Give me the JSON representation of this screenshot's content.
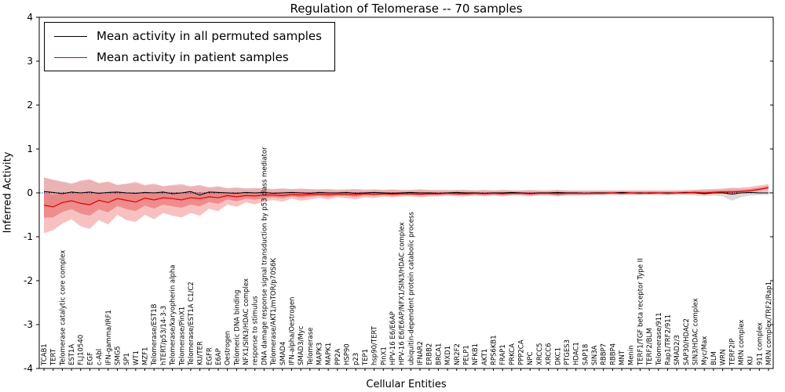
{
  "chart_data": {
    "type": "line",
    "title": "Regulation of Telomerase -- 70 samples",
    "xlabel": "Cellular Entities",
    "ylabel": "Inferred Activity",
    "ylim": [
      -4,
      4
    ],
    "yticks": [
      4,
      3,
      2,
      1,
      0,
      -1,
      -2,
      -3,
      -4
    ],
    "grid": false,
    "legend_position": "upper left",
    "legend": [
      {
        "label": "Mean activity in all permuted samples",
        "color": "#000000"
      },
      {
        "label": "Mean activity in patient samples",
        "color": "#e00000"
      }
    ],
    "colors": {
      "permuted_line": "#000000",
      "patient_line": "#e00000",
      "permuted_band": "#bbbbbb",
      "patient_band_outer": "#f4a0a0",
      "patient_band_inner": "#e86060",
      "zero_line_black": "#000000",
      "zero_line_blue": "#4444cc",
      "axis": "#000000"
    },
    "entities": [
      "TCAB1",
      "TERT",
      "Telomerase catalytic core complex",
      "EST1A",
      "FLJ10540",
      "EGF",
      "c-Abl",
      "IFN-gamma/IRF1",
      "SMG5",
      "SP1",
      "WT1",
      "MZF1",
      "Telomerase/EST1B",
      "hTERT/p53/14-3-3",
      "Telomerase/karyopherin alpha",
      "Telomerase/PinX1",
      "Telomerase/EST1A C1/C2",
      "KU/TER",
      "EGFR",
      "E6AP",
      "Oestrogen",
      "Telomeric DNA binding",
      "NFX1/SIN3/HDAC complex",
      "response to stimulus",
      "DNA damage response signal transduction by p53 class mediator",
      "Telomerase/AKT1/mTOR/p70S6K",
      "SMAD4",
      "IFN-alpha/Oestrogen",
      "SMAD3/Myc",
      "Telomerase",
      "MAPK3",
      "MAPK1",
      "PP2A",
      "HSP90",
      "p23",
      "TEP1",
      "hsp90/TERT",
      "PinX1",
      "HPV-16 E6/E6AP",
      "HPV-16 E6/E6AP/NFX1/SIN3/HDAC complex",
      "ubiquitin-dependent protein catabolic process",
      "IFNAR2",
      "ERBB2",
      "BRCA1",
      "MXD1",
      "NR2F2",
      "PELP1",
      "NFKB1",
      "AKT1",
      "RPS6KB1",
      "FRAP1",
      "PRKCA",
      "PPP2CA",
      "NPC",
      "XRCC5",
      "XRCC6",
      "DKC1",
      "PTGES3",
      "HDAC1",
      "SAP18",
      "SIN3A",
      "RBBP7",
      "RBBP4",
      "MNT",
      "Menin",
      "TERF1/TGF beta receptor Type II",
      "TERF2/BLM",
      "Telomerase/911",
      "Rap1/TRF2/911",
      "SMAD2/3",
      "SAP30/HDAC2",
      "SIN3/HDAC complex",
      "Myc/Max",
      "BLM",
      "WRN",
      "TERF2IP",
      "MRN complex",
      "KU",
      "911 complex",
      "MRN complex/TRF2/Rap1"
    ],
    "series": [
      {
        "name": "Mean activity in all permuted samples",
        "values": [
          0.03,
          0.01,
          -0.02,
          0.02,
          0,
          0.02,
          -0.01,
          0.01,
          0.02,
          0,
          -0.01,
          0.01,
          0,
          0.02,
          -0.02,
          0,
          0.03,
          -0.05,
          0.02,
          0.01,
          0,
          -0.01,
          0.01,
          0,
          0.01,
          -0.01,
          0,
          0.01,
          0,
          -0.01,
          0.01,
          0,
          0,
          0.01,
          -0.01,
          0,
          0.01,
          0,
          -0.01,
          0,
          0.01,
          0,
          0,
          -0.01,
          0,
          0.01,
          0,
          0,
          -0.01,
          0,
          0,
          0.01,
          0,
          -0.01,
          0,
          0,
          0.01,
          0,
          0,
          -0.01,
          0,
          0,
          0,
          0.01,
          0,
          0,
          -0.01,
          0,
          0,
          0,
          0.01,
          0,
          -0.02,
          0,
          0,
          -0.03,
          0,
          0.01,
          0,
          0
        ]
      },
      {
        "name": "Mean activity in patient samples",
        "values": [
          -0.28,
          -0.32,
          -0.22,
          -0.18,
          -0.24,
          -0.27,
          -0.17,
          -0.22,
          -0.13,
          -0.17,
          -0.21,
          -0.12,
          -0.16,
          -0.11,
          -0.13,
          -0.16,
          -0.11,
          -0.13,
          -0.09,
          -0.11,
          -0.06,
          -0.09,
          -0.06,
          -0.07,
          -0.05,
          -0.05,
          -0.06,
          -0.04,
          -0.05,
          -0.04,
          -0.03,
          -0.04,
          -0.03,
          -0.03,
          -0.04,
          -0.02,
          -0.03,
          -0.02,
          -0.03,
          -0.02,
          -0.02,
          -0.03,
          -0.02,
          -0.02,
          -0.01,
          -0.02,
          -0.02,
          -0.01,
          -0.02,
          -0.01,
          -0.02,
          -0.01,
          -0.01,
          -0.02,
          -0.01,
          -0.01,
          -0.02,
          -0.01,
          -0.01,
          -0.01,
          -0.01,
          -0.01,
          0,
          -0.01,
          0,
          -0.01,
          0,
          0,
          -0.01,
          0,
          0,
          0.01,
          0,
          0.01,
          0.02,
          0.02,
          0.03,
          0.05,
          0.08,
          0.12
        ]
      }
    ],
    "bands": {
      "permuted_lower": [
        -0.35,
        -0.3,
        -0.25,
        -0.2,
        -0.24,
        -0.28,
        -0.2,
        -0.22,
        -0.16,
        -0.18,
        -0.2,
        -0.15,
        -0.18,
        -0.14,
        -0.15,
        -0.16,
        -0.13,
        -0.2,
        -0.12,
        -0.13,
        -0.1,
        -0.11,
        -0.09,
        -0.1,
        -0.09,
        -0.08,
        -0.09,
        -0.08,
        -0.08,
        -0.08,
        -0.07,
        -0.08,
        -0.07,
        -0.07,
        -0.08,
        -0.07,
        -0.07,
        -0.06,
        -0.07,
        -0.06,
        -0.06,
        -0.07,
        -0.06,
        -0.06,
        -0.06,
        -0.06,
        -0.06,
        -0.05,
        -0.06,
        -0.05,
        -0.06,
        -0.05,
        -0.05,
        -0.06,
        -0.05,
        -0.05,
        -0.06,
        -0.05,
        -0.05,
        -0.05,
        -0.05,
        -0.05,
        -0.05,
        -0.05,
        -0.05,
        -0.05,
        -0.05,
        -0.05,
        -0.05,
        -0.05,
        -0.05,
        -0.06,
        -0.08,
        -0.06,
        -0.08,
        -0.18,
        -0.1,
        -0.06,
        -0.05,
        -0.05
      ],
      "permuted_upper": [
        0.35,
        0.3,
        0.26,
        0.22,
        0.26,
        0.3,
        0.22,
        0.24,
        0.18,
        0.2,
        0.22,
        0.16,
        0.19,
        0.15,
        0.16,
        0.17,
        0.14,
        0.16,
        0.13,
        0.14,
        0.11,
        0.12,
        0.1,
        0.11,
        0.1,
        0.09,
        0.1,
        0.09,
        0.09,
        0.09,
        0.08,
        0.09,
        0.08,
        0.08,
        0.09,
        0.08,
        0.08,
        0.07,
        0.08,
        0.07,
        0.07,
        0.08,
        0.07,
        0.07,
        0.07,
        0.07,
        0.07,
        0.06,
        0.07,
        0.06,
        0.07,
        0.06,
        0.06,
        0.07,
        0.06,
        0.06,
        0.07,
        0.06,
        0.06,
        0.06,
        0.06,
        0.06,
        0.06,
        0.06,
        0.06,
        0.06,
        0.06,
        0.06,
        0.06,
        0.06,
        0.06,
        0.07,
        0.08,
        0.07,
        0.08,
        0.12,
        0.09,
        0.07,
        0.06,
        0.06
      ],
      "patient_lower": [
        -0.92,
        -0.85,
        -0.7,
        -0.6,
        -0.76,
        -0.82,
        -0.62,
        -0.72,
        -0.5,
        -0.62,
        -0.66,
        -0.5,
        -0.6,
        -0.46,
        -0.52,
        -0.56,
        -0.46,
        -0.52,
        -0.36,
        -0.42,
        -0.26,
        -0.32,
        -0.22,
        -0.26,
        -0.2,
        -0.16,
        -0.2,
        -0.13,
        -0.18,
        -0.15,
        -0.11,
        -0.15,
        -0.1,
        -0.12,
        -0.15,
        -0.1,
        -0.12,
        -0.08,
        -0.1,
        -0.08,
        -0.08,
        -0.1,
        -0.08,
        -0.08,
        -0.06,
        -0.08,
        -0.08,
        -0.06,
        -0.08,
        -0.06,
        -0.08,
        -0.06,
        -0.06,
        -0.08,
        -0.06,
        -0.06,
        -0.08,
        -0.06,
        -0.06,
        -0.06,
        -0.05,
        -0.05,
        -0.04,
        -0.05,
        -0.04,
        -0.05,
        -0.04,
        -0.04,
        -0.05,
        -0.04,
        -0.04,
        -0.03,
        -0.04,
        -0.03,
        -0.02,
        -0.02,
        -0.01,
        0,
        0.02,
        0.05
      ],
      "patient_upper": [
        0.35,
        0.3,
        0.25,
        0.2,
        0.28,
        0.31,
        0.22,
        0.26,
        0.18,
        0.21,
        0.25,
        0.18,
        0.21,
        0.15,
        0.18,
        0.2,
        0.15,
        0.18,
        0.12,
        0.15,
        0.1,
        0.12,
        0.1,
        0.1,
        0.1,
        0.08,
        0.1,
        0.08,
        0.1,
        0.08,
        0.08,
        0.08,
        0.06,
        0.08,
        0.08,
        0.06,
        0.08,
        0.06,
        0.08,
        0.06,
        0.06,
        0.08,
        0.06,
        0.06,
        0.05,
        0.06,
        0.06,
        0.05,
        0.06,
        0.05,
        0.06,
        0.05,
        0.05,
        0.06,
        0.05,
        0.05,
        0.06,
        0.05,
        0.05,
        0.05,
        0.05,
        0.05,
        0.05,
        0.05,
        0.05,
        0.05,
        0.05,
        0.05,
        0.05,
        0.05,
        0.06,
        0.07,
        0.08,
        0.09,
        0.1,
        0.11,
        0.12,
        0.14,
        0.17,
        0.2
      ]
    }
  }
}
